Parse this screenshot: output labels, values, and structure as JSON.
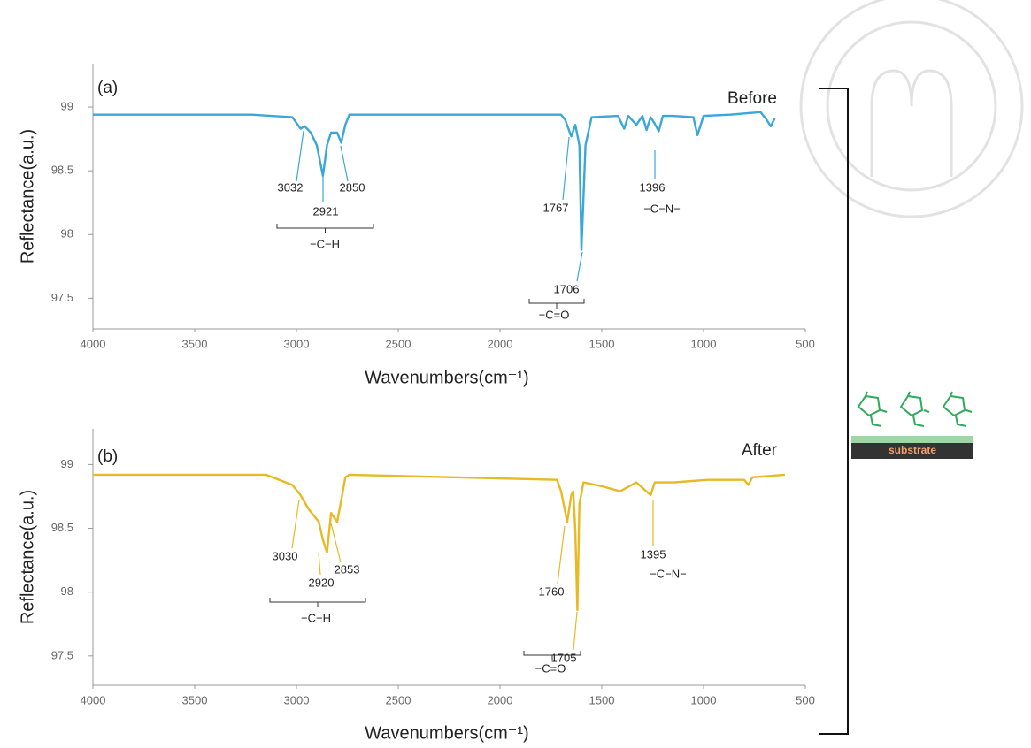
{
  "chart_data": [
    {
      "type": "line",
      "panel_label": "(a)",
      "x_label": "Wavenumbers(cm⁻¹)",
      "y_label": "Reflectance(a.u.)",
      "xlim": [
        4000,
        500
      ],
      "xticks": [
        4000,
        3500,
        3000,
        2500,
        2000,
        1500,
        1000,
        500
      ],
      "ylim": [
        97.26,
        99.34
      ],
      "yticks": [
        97.5,
        98,
        98.5,
        99
      ],
      "x": [
        4000,
        3220,
        3020,
        2980,
        2960,
        2930,
        2900,
        2870,
        2850,
        2830,
        2800,
        2780,
        2760,
        2740,
        1700,
        1680,
        1650,
        1630,
        1610,
        1600,
        1580,
        1550,
        1420,
        1390,
        1370,
        1330,
        1300,
        1280,
        1260,
        1240,
        1220,
        1200,
        1150,
        1050,
        1030,
        1000,
        870,
        720,
        690,
        670,
        650
      ],
      "series": [
        {
          "name": "Before",
          "color": "#3aa7d9",
          "values": [
            98.94,
            98.94,
            98.92,
            98.83,
            98.85,
            98.8,
            98.7,
            98.46,
            98.7,
            98.8,
            98.8,
            98.72,
            98.86,
            98.94,
            98.94,
            98.9,
            98.77,
            98.86,
            98.7,
            97.88,
            98.7,
            98.92,
            98.93,
            98.83,
            98.93,
            98.86,
            98.93,
            98.82,
            98.92,
            98.87,
            98.81,
            98.93,
            98.93,
            98.92,
            98.78,
            98.93,
            98.94,
            98.96,
            98.9,
            98.85,
            98.91
          ]
        }
      ],
      "annotations": [
        "3032",
        "2921",
        "2850",
        "1767",
        "1706",
        "1396"
      ],
      "group_labels": [
        "−C−H",
        "−C=O",
        "−C−N−"
      ]
    },
    {
      "type": "line",
      "panel_label": "(b)",
      "x_label": "Wavenumbers(cm⁻¹)",
      "y_label": "Reflectance(a.u.)",
      "xlim": [
        4000,
        500
      ],
      "xticks": [
        4000,
        3500,
        3000,
        2500,
        2000,
        1500,
        1000,
        500
      ],
      "ylim": [
        97.27,
        99.28
      ],
      "yticks": [
        97.5,
        98,
        98.5,
        99
      ],
      "x": [
        4000,
        3150,
        3020,
        2980,
        2940,
        2890,
        2870,
        2850,
        2830,
        2800,
        2780,
        2760,
        2740,
        1720,
        1700,
        1670,
        1650,
        1640,
        1630,
        1620,
        1610,
        1590,
        1500,
        1410,
        1330,
        1260,
        1240,
        1150,
        980,
        800,
        780,
        760,
        600
      ],
      "series": [
        {
          "name": "After",
          "color": "#e8b923",
          "values": [
            98.92,
            98.92,
            98.84,
            98.76,
            98.65,
            98.55,
            98.41,
            98.31,
            98.62,
            98.55,
            98.72,
            98.9,
            98.92,
            98.88,
            98.79,
            98.55,
            98.76,
            98.79,
            98.48,
            97.86,
            98.69,
            98.86,
            98.83,
            98.79,
            98.86,
            98.76,
            98.86,
            98.86,
            98.88,
            98.88,
            98.84,
            98.9,
            98.92
          ]
        }
      ],
      "annotations": [
        "3030",
        "2920",
        "2853",
        "1760",
        "1705",
        "1395"
      ],
      "group_labels": [
        "−C−H",
        "−C=O",
        "−C−N−"
      ]
    }
  ],
  "inset": {
    "label": "substrate"
  }
}
